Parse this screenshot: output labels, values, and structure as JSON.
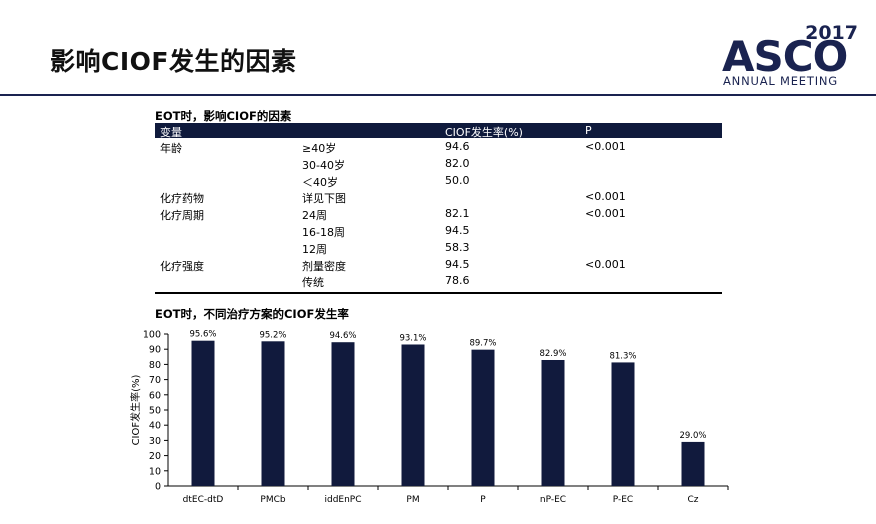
{
  "slide": {
    "title": "影响CIOF发生的因素"
  },
  "logo": {
    "year": "2017",
    "word": "ASCO",
    "subtitle": "ANNUAL MEETING",
    "color": "#1a2350"
  },
  "table": {
    "title": "EOT时，影响CIOF的因素",
    "headers": [
      "变量",
      "",
      "CIOF发生率(%)",
      "P"
    ],
    "rows": [
      [
        "年龄",
        "≥40岁",
        "94.6",
        "<0.001"
      ],
      [
        "",
        "30-40岁",
        "82.0",
        ""
      ],
      [
        "",
        "＜40岁",
        "50.0",
        ""
      ],
      [
        "化疗药物",
        "详见下图",
        "",
        "<0.001"
      ],
      [
        "化疗周期",
        "24周",
        "82.1",
        "<0.001"
      ],
      [
        "",
        "16-18周",
        "94.5",
        ""
      ],
      [
        "",
        "12周",
        "58.3",
        ""
      ],
      [
        "化疗强度",
        "剂量密度",
        "94.5",
        "<0.001"
      ],
      [
        "",
        "传统",
        "78.6",
        ""
      ]
    ]
  },
  "chart_data": {
    "type": "bar",
    "title": "EOT时，不同治疗方案的CIOF发生率",
    "ylabel": "CIOF发生率(%)",
    "xlabel": "",
    "categories": [
      "dtEC-dtD",
      "PMCb",
      " iddEnPC",
      "PM",
      "P",
      "nP-EC",
      "P-EC",
      "Cz"
    ],
    "values": [
      95.6,
      95.2,
      94.6,
      93.1,
      89.7,
      82.9,
      81.3,
      29.0
    ],
    "data_labels": [
      "95.6%",
      "95.2%",
      "94.6%",
      "93.1%",
      "89.7%",
      "82.9%",
      "81.3%",
      "29.0%"
    ],
    "ylim": [
      0,
      100
    ],
    "yticks": [
      "0",
      "10",
      "20",
      "30",
      "40",
      "50",
      "60",
      "70",
      "80",
      "90",
      "100"
    ],
    "grid": false,
    "legend": "none",
    "bar_color": "#111a3d"
  }
}
